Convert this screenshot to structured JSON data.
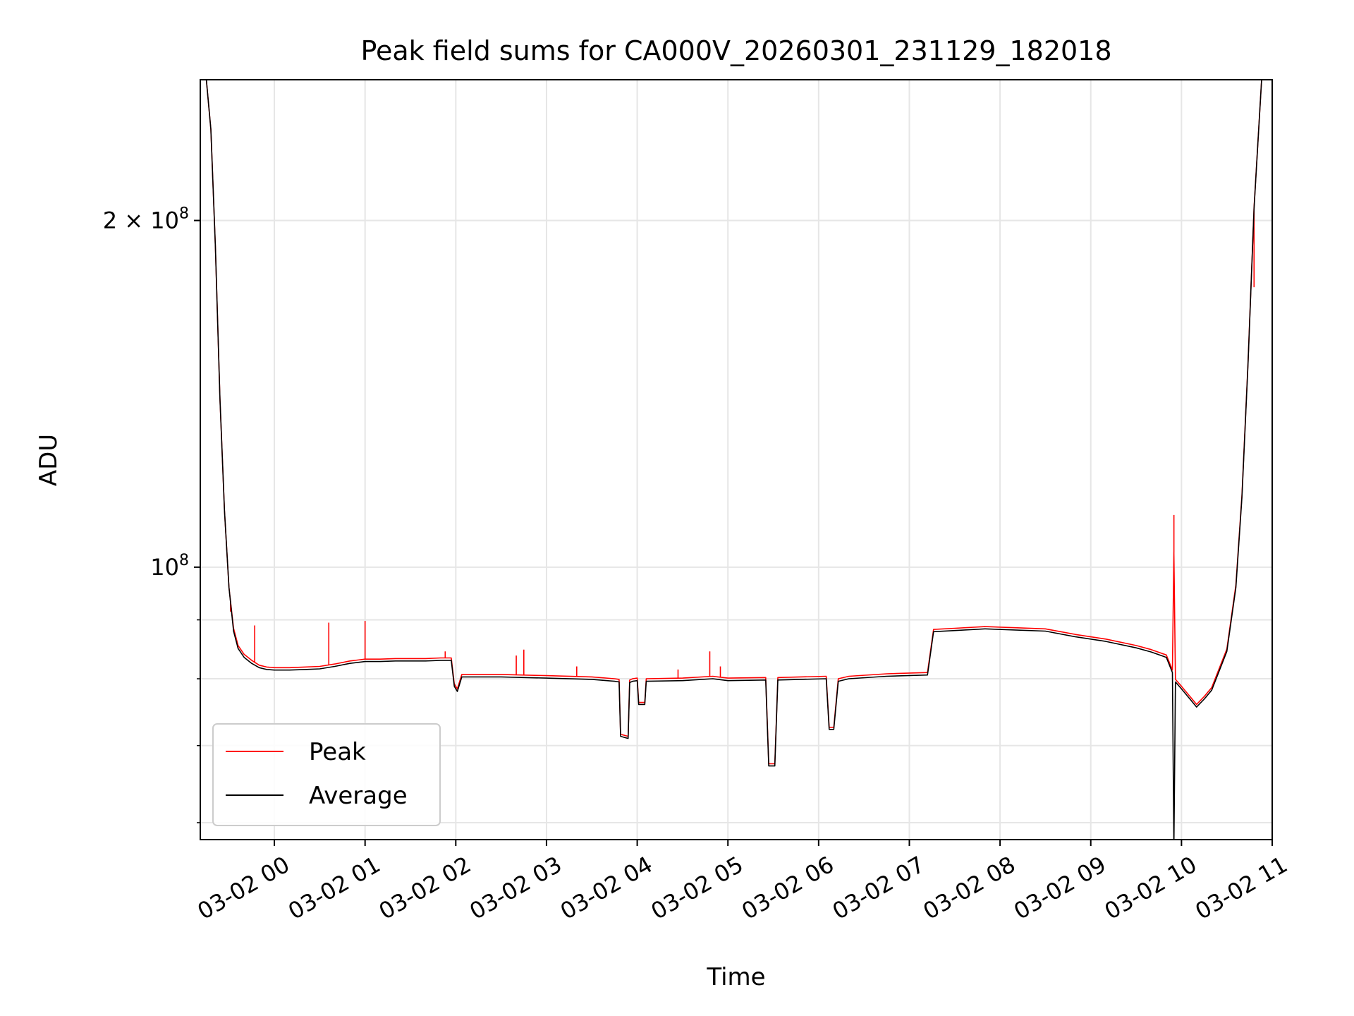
{
  "chart_data": {
    "type": "line",
    "title": "Peak field sums for CA000V_20260301_231129_182018",
    "xlabel": "Time",
    "ylabel": "ADU",
    "x_range": [
      "2026-03-01 23:11",
      "2026-03-02 11:00"
    ],
    "y_scale": "log",
    "ylim": [
      58000000,
      265000000
    ],
    "grid": true,
    "legend_position": "lower-left",
    "x_ticks": [
      {
        "value": "2026-03-02 00:00",
        "label": "03-02 00"
      },
      {
        "value": "2026-03-02 01:00",
        "label": "03-02 01"
      },
      {
        "value": "2026-03-02 02:00",
        "label": "03-02 02"
      },
      {
        "value": "2026-03-02 03:00",
        "label": "03-02 03"
      },
      {
        "value": "2026-03-02 04:00",
        "label": "03-02 04"
      },
      {
        "value": "2026-03-02 05:00",
        "label": "03-02 05"
      },
      {
        "value": "2026-03-02 06:00",
        "label": "03-02 06"
      },
      {
        "value": "2026-03-02 07:00",
        "label": "03-02 07"
      },
      {
        "value": "2026-03-02 08:00",
        "label": "03-02 08"
      },
      {
        "value": "2026-03-02 09:00",
        "label": "03-02 09"
      },
      {
        "value": "2026-03-02 10:00",
        "label": "03-02 10"
      },
      {
        "value": "2026-03-02 11:00",
        "label": "03-02 11"
      }
    ],
    "y_major_ticks": [
      {
        "value": 100000000,
        "label_base": "10",
        "label_exp": "8",
        "label_mantissa": ""
      },
      {
        "value": 200000000,
        "label_base": "10",
        "label_exp": "8",
        "label_mantissa": "2 × "
      }
    ],
    "y_minor_ticks": [
      60000000,
      70000000,
      80000000,
      90000000
    ],
    "series": [
      {
        "name": "Average",
        "color": "#000000",
        "points": [
          [
            "2026-03-01 23:11",
            265000000
          ],
          [
            "2026-03-01 23:15",
            265000000
          ],
          [
            "2026-03-01 23:18",
            240000000
          ],
          [
            "2026-03-01 23:21",
            190000000
          ],
          [
            "2026-03-01 23:24",
            140000000
          ],
          [
            "2026-03-01 23:27",
            112000000
          ],
          [
            "2026-03-01 23:30",
            96000000
          ],
          [
            "2026-03-01 23:33",
            88000000
          ],
          [
            "2026-03-01 23:36",
            85000000
          ],
          [
            "2026-03-01 23:40",
            83500000
          ],
          [
            "2026-03-01 23:45",
            82500000
          ],
          [
            "2026-03-01 23:50",
            81800000
          ],
          [
            "2026-03-01 23:55",
            81500000
          ],
          [
            "2026-03-02 00:00",
            81400000
          ],
          [
            "2026-03-02 00:10",
            81400000
          ],
          [
            "2026-03-02 00:20",
            81500000
          ],
          [
            "2026-03-02 00:30",
            81600000
          ],
          [
            "2026-03-02 00:40",
            82000000
          ],
          [
            "2026-03-02 00:50",
            82500000
          ],
          [
            "2026-03-02 01:00",
            82800000
          ],
          [
            "2026-03-02 01:10",
            82800000
          ],
          [
            "2026-03-02 01:20",
            82900000
          ],
          [
            "2026-03-02 01:30",
            82900000
          ],
          [
            "2026-03-02 01:40",
            82900000
          ],
          [
            "2026-03-02 01:50",
            83000000
          ],
          [
            "2026-03-02 01:57",
            83000000
          ],
          [
            "2026-03-02 01:59",
            78800000
          ],
          [
            "2026-03-02 02:01",
            78000000
          ],
          [
            "2026-03-02 02:04",
            80300000
          ],
          [
            "2026-03-02 02:30",
            80300000
          ],
          [
            "2026-03-02 03:00",
            80100000
          ],
          [
            "2026-03-02 03:30",
            79900000
          ],
          [
            "2026-03-02 03:45",
            79600000
          ],
          [
            "2026-03-02 03:48",
            79500000
          ],
          [
            "2026-03-02 03:49",
            71300000
          ],
          [
            "2026-03-02 03:54",
            71000000
          ],
          [
            "2026-03-02 03:55",
            79400000
          ],
          [
            "2026-03-02 03:57",
            79600000
          ],
          [
            "2026-03-02 04:00",
            79700000
          ],
          [
            "2026-03-02 04:01",
            76000000
          ],
          [
            "2026-03-02 04:05",
            76000000
          ],
          [
            "2026-03-02 04:06",
            79600000
          ],
          [
            "2026-03-02 04:30",
            79700000
          ],
          [
            "2026-03-02 04:50",
            80000000
          ],
          [
            "2026-03-02 05:00",
            79700000
          ],
          [
            "2026-03-02 05:25",
            79800000
          ],
          [
            "2026-03-02 05:27",
            67200000
          ],
          [
            "2026-03-02 05:31",
            67200000
          ],
          [
            "2026-03-02 05:33",
            79800000
          ],
          [
            "2026-03-02 06:05",
            80000000
          ],
          [
            "2026-03-02 06:07",
            72300000
          ],
          [
            "2026-03-02 06:10",
            72300000
          ],
          [
            "2026-03-02 06:13",
            79600000
          ],
          [
            "2026-03-02 06:20",
            80000000
          ],
          [
            "2026-03-02 06:45",
            80400000
          ],
          [
            "2026-03-02 07:12",
            80600000
          ],
          [
            "2026-03-02 07:16",
            87900000
          ],
          [
            "2026-03-02 07:30",
            88100000
          ],
          [
            "2026-03-02 07:50",
            88400000
          ],
          [
            "2026-03-02 08:10",
            88200000
          ],
          [
            "2026-03-02 08:30",
            88000000
          ],
          [
            "2026-03-02 08:50",
            87000000
          ],
          [
            "2026-03-02 09:10",
            86200000
          ],
          [
            "2026-03-02 09:30",
            85100000
          ],
          [
            "2026-03-02 09:40",
            84400000
          ],
          [
            "2026-03-02 09:50",
            83500000
          ],
          [
            "2026-03-02 09:54",
            81000000
          ],
          [
            "2026-03-02 09:55",
            57000000
          ],
          [
            "2026-03-02 09:56",
            79500000
          ],
          [
            "2026-03-02 10:00",
            78400000
          ],
          [
            "2026-03-02 10:10",
            75600000
          ],
          [
            "2026-03-02 10:15",
            76800000
          ],
          [
            "2026-03-02 10:20",
            78200000
          ],
          [
            "2026-03-02 10:30",
            84500000
          ],
          [
            "2026-03-02 10:36",
            96000000
          ],
          [
            "2026-03-02 10:40",
            115000000
          ],
          [
            "2026-03-02 10:44",
            150000000
          ],
          [
            "2026-03-02 10:48",
            205000000
          ],
          [
            "2026-03-02 10:53",
            265000000
          ],
          [
            "2026-03-02 10:59",
            265000000
          ]
        ]
      },
      {
        "name": "Peak",
        "color": "#ff0000",
        "points": [
          [
            "2026-03-01 23:11",
            265000000
          ],
          [
            "2026-03-01 23:15",
            265000000
          ],
          [
            "2026-03-01 23:18",
            240000000
          ],
          [
            "2026-03-01 23:21",
            190000000
          ],
          [
            "2026-03-01 23:24",
            140000000
          ],
          [
            "2026-03-01 23:27",
            112000000
          ],
          [
            "2026-03-01 23:30",
            96000000
          ],
          [
            "2026-03-01 23:33",
            88500000
          ],
          [
            "2026-03-01 23:36",
            85500000
          ],
          [
            "2026-03-01 23:40",
            84000000
          ],
          [
            "2026-03-01 23:45",
            83000000
          ],
          [
            "2026-03-01 23:50",
            82200000
          ],
          [
            "2026-03-01 23:55",
            81900000
          ],
          [
            "2026-03-02 00:00",
            81800000
          ],
          [
            "2026-03-02 00:10",
            81800000
          ],
          [
            "2026-03-02 00:20",
            81900000
          ],
          [
            "2026-03-02 00:30",
            82000000
          ],
          [
            "2026-03-02 00:40",
            82400000
          ],
          [
            "2026-03-02 00:50",
            82900000
          ],
          [
            "2026-03-02 01:00",
            83200000
          ],
          [
            "2026-03-02 01:10",
            83200000
          ],
          [
            "2026-03-02 01:20",
            83300000
          ],
          [
            "2026-03-02 01:30",
            83300000
          ],
          [
            "2026-03-02 01:40",
            83300000
          ],
          [
            "2026-03-02 01:50",
            83400000
          ],
          [
            "2026-03-02 01:57",
            83400000
          ],
          [
            "2026-03-02 01:59",
            79200000
          ],
          [
            "2026-03-02 02:01",
            78400000
          ],
          [
            "2026-03-02 02:04",
            80700000
          ],
          [
            "2026-03-02 02:30",
            80700000
          ],
          [
            "2026-03-02 03:00",
            80500000
          ],
          [
            "2026-03-02 03:30",
            80300000
          ],
          [
            "2026-03-02 03:45",
            80000000
          ],
          [
            "2026-03-02 03:48",
            79900000
          ],
          [
            "2026-03-02 03:49",
            71600000
          ],
          [
            "2026-03-02 03:54",
            71300000
          ],
          [
            "2026-03-02 03:55",
            79800000
          ],
          [
            "2026-03-02 03:57",
            80000000
          ],
          [
            "2026-03-02 04:00",
            80100000
          ],
          [
            "2026-03-02 04:01",
            76300000
          ],
          [
            "2026-03-02 04:05",
            76300000
          ],
          [
            "2026-03-02 04:06",
            80000000
          ],
          [
            "2026-03-02 04:30",
            80100000
          ],
          [
            "2026-03-02 04:50",
            80400000
          ],
          [
            "2026-03-02 05:00",
            80100000
          ],
          [
            "2026-03-02 05:25",
            80200000
          ],
          [
            "2026-03-02 05:27",
            67500000
          ],
          [
            "2026-03-02 05:31",
            67500000
          ],
          [
            "2026-03-02 05:33",
            80200000
          ],
          [
            "2026-03-02 06:05",
            80400000
          ],
          [
            "2026-03-02 06:07",
            72600000
          ],
          [
            "2026-03-02 06:10",
            72600000
          ],
          [
            "2026-03-02 06:13",
            80000000
          ],
          [
            "2026-03-02 06:20",
            80400000
          ],
          [
            "2026-03-02 06:45",
            80800000
          ],
          [
            "2026-03-02 07:12",
            81000000
          ],
          [
            "2026-03-02 07:16",
            88300000
          ],
          [
            "2026-03-02 07:30",
            88500000
          ],
          [
            "2026-03-02 07:50",
            88800000
          ],
          [
            "2026-03-02 08:10",
            88600000
          ],
          [
            "2026-03-02 08:30",
            88400000
          ],
          [
            "2026-03-02 08:50",
            87400000
          ],
          [
            "2026-03-02 09:10",
            86600000
          ],
          [
            "2026-03-02 09:30",
            85500000
          ],
          [
            "2026-03-02 09:40",
            84800000
          ],
          [
            "2026-03-02 09:50",
            83900000
          ],
          [
            "2026-03-02 09:54",
            81400000
          ],
          [
            "2026-03-02 09:55",
            103000000
          ],
          [
            "2026-03-02 09:56",
            79900000
          ],
          [
            "2026-03-02 10:00",
            78800000
          ],
          [
            "2026-03-02 10:10",
            76000000
          ],
          [
            "2026-03-02 10:15",
            77200000
          ],
          [
            "2026-03-02 10:20",
            78600000
          ],
          [
            "2026-03-02 10:30",
            84900000
          ],
          [
            "2026-03-02 10:36",
            96500000
          ],
          [
            "2026-03-02 10:40",
            115500000
          ],
          [
            "2026-03-02 10:44",
            150500000
          ],
          [
            "2026-03-02 10:48",
            205500000
          ],
          [
            "2026-03-02 10:53",
            265000000
          ],
          [
            "2026-03-02 10:59",
            265000000
          ]
        ],
        "spikes": [
          [
            "2026-03-01 23:31",
            91500000
          ],
          [
            "2026-03-01 23:47",
            89000000
          ],
          [
            "2026-03-02 00:36",
            89500000
          ],
          [
            "2026-03-02 01:00",
            89800000
          ],
          [
            "2026-03-02 01:53",
            84500000
          ],
          [
            "2026-03-02 02:40",
            83800000
          ],
          [
            "2026-03-02 02:45",
            84800000
          ],
          [
            "2026-03-02 03:20",
            82000000
          ],
          [
            "2026-03-02 04:27",
            81500000
          ],
          [
            "2026-03-02 04:48",
            84500000
          ],
          [
            "2026-03-02 04:55",
            82000000
          ],
          [
            "2026-03-02 09:55",
            111000000
          ],
          [
            "2026-03-02 10:48",
            175000000
          ]
        ]
      }
    ],
    "legend": [
      {
        "label": "Peak",
        "color": "#ff0000"
      },
      {
        "label": "Average",
        "color": "#000000"
      }
    ]
  }
}
